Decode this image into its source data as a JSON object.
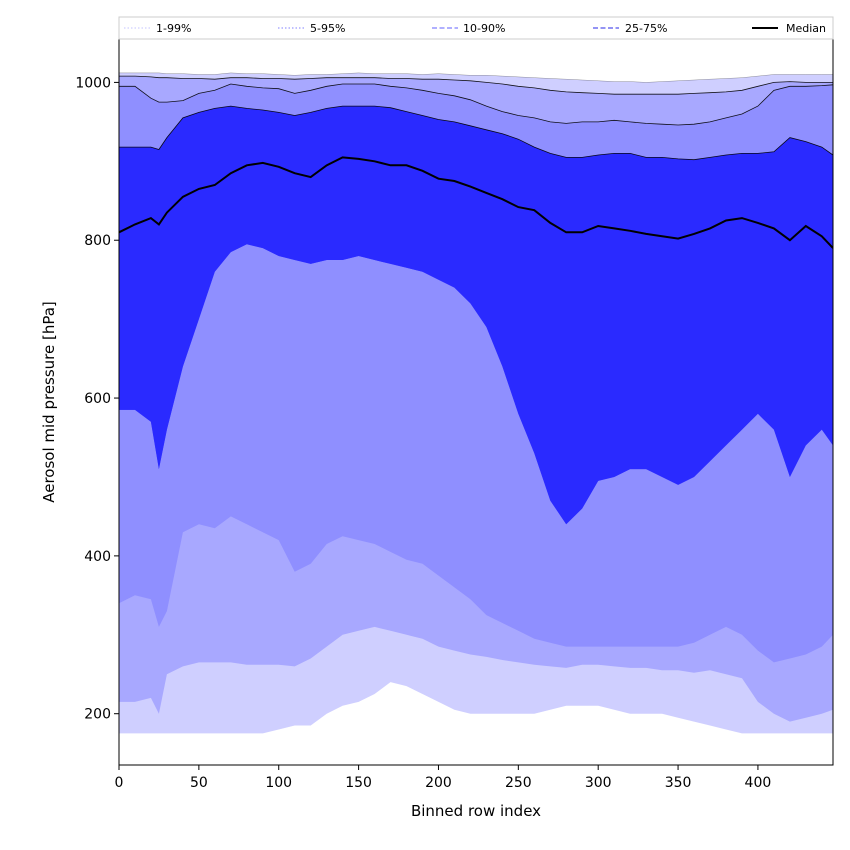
{
  "chart_data": {
    "type": "area",
    "xlabel": "Binned row index",
    "ylabel": "Aerosol mid pressure [hPa]",
    "xlim": [
      0,
      447
    ],
    "ylim": [
      135,
      1055
    ],
    "xticks": [
      0,
      50,
      100,
      150,
      200,
      250,
      300,
      350,
      400
    ],
    "yticks": [
      200,
      400,
      600,
      800,
      1000
    ],
    "grid": false,
    "legend_position": "top, above plot",
    "legend": [
      {
        "label": "1-99%",
        "style": "dotted",
        "color": "#cfcfff"
      },
      {
        "label": "5-95%",
        "style": "dotted",
        "color": "#9a9aff"
      },
      {
        "label": "10-90%",
        "style": "dashed",
        "color": "#8080ff"
      },
      {
        "label": "25-75%",
        "style": "dashed",
        "color": "#5555ee"
      },
      {
        "label": "Median",
        "style": "solid",
        "color": "#000000"
      }
    ],
    "x": [
      0,
      10,
      20,
      25,
      30,
      40,
      50,
      60,
      70,
      80,
      90,
      100,
      110,
      120,
      130,
      140,
      150,
      160,
      170,
      180,
      190,
      200,
      210,
      220,
      230,
      240,
      250,
      260,
      270,
      280,
      290,
      300,
      310,
      320,
      330,
      340,
      350,
      360,
      370,
      380,
      390,
      400,
      410,
      420,
      430,
      440,
      447
    ],
    "bands": [
      {
        "name": "1-99%",
        "color": "#cfcfff",
        "lower": [
          175,
          175,
          175,
          175,
          175,
          175,
          175,
          175,
          175,
          175,
          175,
          180,
          185,
          185,
          200,
          210,
          215,
          225,
          240,
          235,
          225,
          215,
          205,
          200,
          200,
          200,
          200,
          200,
          205,
          210,
          210,
          210,
          205,
          200,
          200,
          200,
          195,
          190,
          185,
          180,
          175,
          175,
          175,
          175,
          175,
          175,
          175
        ],
        "upper": [
          1012,
          1012,
          1012,
          1012,
          1011,
          1011,
          1010,
          1010,
          1012,
          1011,
          1011,
          1010,
          1009,
          1010,
          1010,
          1011,
          1012,
          1011,
          1011,
          1011,
          1010,
          1011,
          1010,
          1009,
          1009,
          1008,
          1007,
          1006,
          1005,
          1004,
          1003,
          1002,
          1001,
          1001,
          1000,
          1001,
          1002,
          1003,
          1004,
          1005,
          1006,
          1008,
          1010,
          1010,
          1010,
          1010,
          1010
        ]
      },
      {
        "name": "5-95%",
        "color": "#a8a8ff",
        "lower": [
          215,
          215,
          220,
          200,
          250,
          260,
          265,
          265,
          265,
          262,
          262,
          262,
          260,
          270,
          285,
          300,
          305,
          310,
          305,
          300,
          295,
          285,
          280,
          275,
          272,
          268,
          265,
          262,
          260,
          258,
          262,
          262,
          260,
          258,
          258,
          255,
          255,
          252,
          255,
          250,
          245,
          215,
          200,
          190,
          195,
          200,
          205
        ],
        "upper": [
          1008,
          1008,
          1007,
          1006,
          1006,
          1005,
          1005,
          1004,
          1006,
          1006,
          1005,
          1005,
          1004,
          1005,
          1006,
          1006,
          1006,
          1006,
          1005,
          1005,
          1004,
          1004,
          1003,
          1002,
          1000,
          998,
          995,
          993,
          990,
          988,
          987,
          986,
          985,
          985,
          985,
          985,
          985,
          986,
          987,
          988,
          990,
          995,
          1000,
          1001,
          1000,
          1000,
          1000
        ]
      },
      {
        "name": "10-90%",
        "color": "#8f8fff",
        "lower": [
          340,
          350,
          345,
          310,
          330,
          430,
          440,
          435,
          450,
          440,
          430,
          420,
          380,
          390,
          415,
          425,
          420,
          415,
          405,
          395,
          390,
          375,
          360,
          345,
          325,
          315,
          305,
          295,
          290,
          285,
          285,
          285,
          285,
          285,
          285,
          285,
          285,
          290,
          300,
          310,
          300,
          280,
          265,
          270,
          275,
          285,
          300
        ],
        "upper": [
          995,
          995,
          980,
          975,
          975,
          977,
          986,
          990,
          998,
          995,
          993,
          992,
          986,
          990,
          995,
          998,
          998,
          998,
          995,
          993,
          990,
          986,
          983,
          978,
          970,
          963,
          958,
          955,
          950,
          948,
          950,
          950,
          952,
          950,
          948,
          947,
          946,
          947,
          950,
          955,
          960,
          970,
          990,
          995,
          995,
          996,
          997
        ]
      },
      {
        "name": "25-75%",
        "color": "#5454ff",
        "lower": [
          585,
          585,
          570,
          510,
          560,
          640,
          700,
          760,
          785,
          795,
          790,
          780,
          775,
          770,
          775,
          775,
          780,
          775,
          770,
          765,
          760,
          750,
          740,
          720,
          690,
          640,
          580,
          530,
          470,
          440,
          460,
          495,
          500,
          510,
          510,
          500,
          490,
          500,
          520,
          540,
          560,
          580,
          560,
          500,
          540,
          560,
          540
        ],
        "upper": [
          918,
          918,
          918,
          915,
          930,
          955,
          962,
          967,
          970,
          967,
          965,
          962,
          958,
          962,
          967,
          970,
          970,
          970,
          968,
          963,
          958,
          953,
          950,
          945,
          940,
          935,
          928,
          918,
          910,
          905,
          905,
          908,
          910,
          910,
          905,
          905,
          903,
          902,
          905,
          908,
          910,
          910,
          912,
          930,
          925,
          918,
          908
        ]
      }
    ],
    "median": {
      "name": "Median",
      "color": "#000000",
      "values": [
        810,
        820,
        828,
        820,
        835,
        855,
        865,
        870,
        885,
        895,
        898,
        893,
        885,
        880,
        895,
        905,
        903,
        900,
        895,
        895,
        888,
        878,
        875,
        868,
        860,
        852,
        842,
        838,
        822,
        810,
        810,
        818,
        815,
        812,
        808,
        805,
        802,
        808,
        815,
        825,
        828,
        822,
        815,
        800,
        818,
        805,
        790
      ]
    },
    "inner_band_color": "#2a2aff"
  }
}
